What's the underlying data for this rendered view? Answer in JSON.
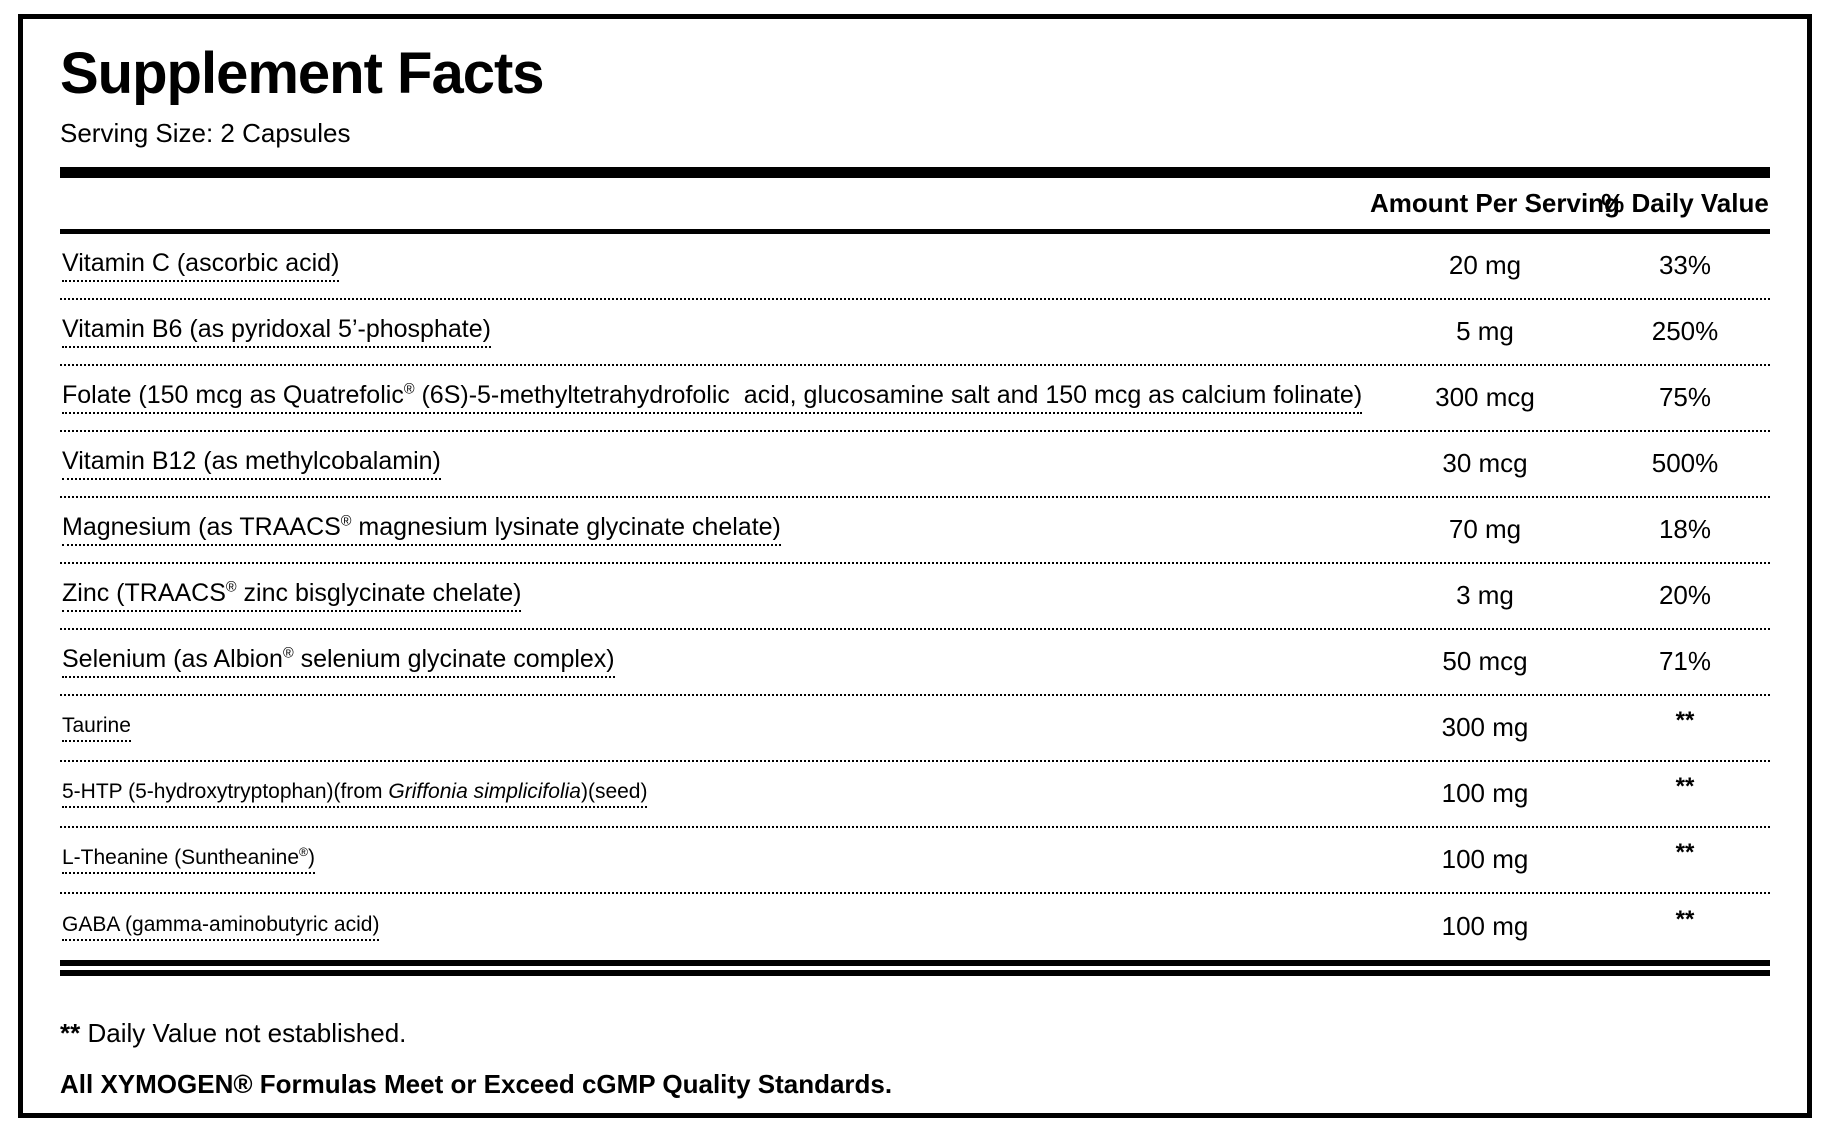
{
  "label": {
    "title": "Supplement Facts",
    "serving_size": "Serving Size: 2 Capsules"
  },
  "table": {
    "headers": {
      "amount": "Amount Per Serving",
      "daily_value": "% Daily Value"
    },
    "rows": [
      {
        "name": [
          {
            "text": "Vitamin C (ascorbic acid)"
          }
        ],
        "amount": "20 mg",
        "daily_value": "33%",
        "small": false
      },
      {
        "name": [
          {
            "text": "Vitamin B6 (as pyridoxal 5’-phosphate)"
          }
        ],
        "amount": "5 mg",
        "daily_value": "250%",
        "small": false
      },
      {
        "name": [
          {
            "text": "Folate (150 mcg as Quatrefolic"
          },
          {
            "text": "®",
            "style": "sup"
          },
          {
            "text": " (6S)-5-methyltetrahydrofolic  acid, glucosamine salt and 150 mcg as calcium folinate)"
          }
        ],
        "amount": "300 mcg",
        "daily_value": "75%",
        "small": false
      },
      {
        "name": [
          {
            "text": "Vitamin B12 (as methylcobalamin)"
          }
        ],
        "amount": "30 mcg",
        "daily_value": "500%",
        "small": false
      },
      {
        "name": [
          {
            "text": "Magnesium (as TRAACS"
          },
          {
            "text": "®",
            "style": "sup"
          },
          {
            "text": " magnesium lysinate glycinate chelate)"
          }
        ],
        "amount": "70 mg",
        "daily_value": "18%",
        "small": false
      },
      {
        "name": [
          {
            "text": "Zinc (TRAACS"
          },
          {
            "text": "®",
            "style": "sup"
          },
          {
            "text": " zinc bisglycinate chelate)"
          }
        ],
        "amount": "3 mg",
        "daily_value": "20%",
        "small": false
      },
      {
        "name": [
          {
            "text": "Selenium (as Albion"
          },
          {
            "text": "®",
            "style": "sup"
          },
          {
            "text": " selenium glycinate complex)"
          }
        ],
        "amount": "50 mcg",
        "daily_value": "71%",
        "small": false
      },
      {
        "name": [
          {
            "text": "Taurine"
          }
        ],
        "amount": "300 mg",
        "daily_value": "**",
        "small": true
      },
      {
        "name": [
          {
            "text": "5-HTP (5-hydroxytryptophan)(from "
          },
          {
            "text": "Griffonia simplicifolia",
            "style": "italic"
          },
          {
            "text": ")(seed)"
          }
        ],
        "amount": "100 mg",
        "daily_value": "**",
        "small": true
      },
      {
        "name": [
          {
            "text": "L-Theanine (Suntheanine"
          },
          {
            "text": "®",
            "style": "sup"
          },
          {
            "text": ")"
          }
        ],
        "amount": "100 mg",
        "daily_value": "**",
        "small": true
      },
      {
        "name": [
          {
            "text": "GABA (gamma-aminobutyric acid)"
          }
        ],
        "amount": "100 mg",
        "daily_value": "**",
        "small": true
      }
    ]
  },
  "footer": {
    "footnote_marker": "**",
    "footnote_text": " Daily Value not established.",
    "cgmp_line": "All XYMOGEN® Formulas Meet or Exceed cGMP Quality Standards."
  },
  "colors": {
    "ink": "#000000",
    "background": "#ffffff"
  }
}
